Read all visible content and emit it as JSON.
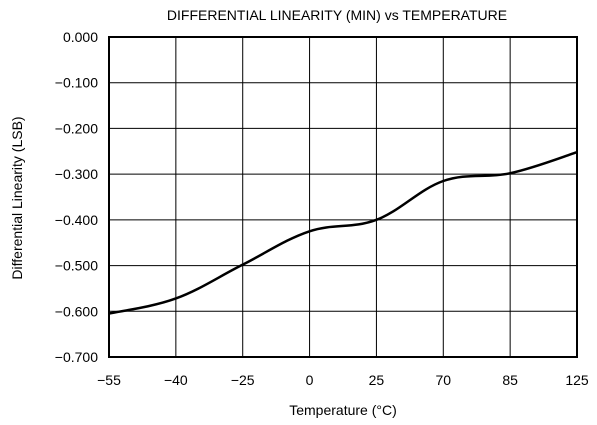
{
  "chart_data": {
    "type": "line",
    "title": "DIFFERENTIAL LINEARITY (MIN) vs TEMPERATURE",
    "xlabel": "Temperature (°C)",
    "ylabel": "Differential Linearity (LSB)",
    "categories": [
      "−55",
      "−40",
      "−25",
      "0",
      "25",
      "70",
      "85",
      "125"
    ],
    "yticks": [
      "0.000",
      "−0.100",
      "−0.200",
      "−0.300",
      "−0.400",
      "−0.500",
      "−0.600",
      "−0.700"
    ],
    "ylim": [
      -0.7,
      0.0
    ],
    "grid": true,
    "legend": "none",
    "series": [
      {
        "values": [
          -0.605,
          -0.572,
          -0.498,
          -0.425,
          -0.4,
          -0.315,
          -0.298,
          -0.252
        ]
      }
    ]
  },
  "colors": {
    "line": "#000000",
    "grid": "#000000",
    "frame": "#000000"
  }
}
